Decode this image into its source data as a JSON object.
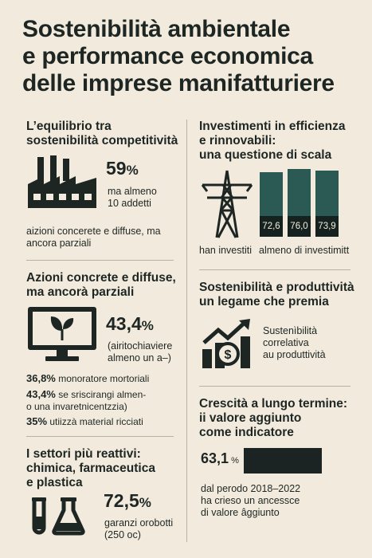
{
  "title": [
    "Sostenibilità ambientale",
    "e performance economica",
    "delle imprese manifatturiere"
  ],
  "colors": {
    "background": "#f2ebdd",
    "ink": "#1e2624",
    "bar": "#2b5a55",
    "bar_dark": "#162220"
  },
  "sec1": {
    "heading": [
      "L’equilibrio tra",
      "sostenibilità competitività"
    ],
    "icon": "factory-icon",
    "value": "59",
    "unit": "%",
    "note": [
      "ma almeno",
      "10 addetti"
    ],
    "caption": [
      "aizioni concerete e diffuse, ma",
      "ancora parziali"
    ]
  },
  "sec2": {
    "heading": [
      "Azioni concrete e diffuse,",
      "ma ancorà parziali"
    ],
    "icon": "monitor-leaf-icon",
    "value": "43,4",
    "unit": "%",
    "note": [
      "(airitochiaviere",
      "almeno un a–)"
    ],
    "stats": [
      {
        "value": "36,8%",
        "text": "monoratore mortoriali"
      },
      {
        "value": "43,4%",
        "text": "se sriscirangi almen-",
        "text2": "o una invaretnicentzzia)"
      },
      {
        "value": "35%",
        "text": "utiizzà material ricciati"
      }
    ]
  },
  "sec3": {
    "heading": [
      "I settori più reattivi:",
      "chimica, farmaceutica",
      "e plastica"
    ],
    "icon": "flask-icon",
    "value": "72,5",
    "unit": "%",
    "note": [
      "garanzi orobotti",
      "(250 oc)"
    ]
  },
  "sec4": {
    "heading": [
      "Investimenti in efficienza",
      "e rinnovabili:",
      "una questione di scala"
    ],
    "icon": "power-tower-icon",
    "chart_data": {
      "type": "bar",
      "values": [
        72.6,
        76.0,
        73.9
      ],
      "labels": [
        "72,6",
        "76,0",
        "73,9"
      ]
    },
    "caption_left": "han investiti",
    "caption_right": "almeno di investimitt"
  },
  "sec5": {
    "heading": [
      "Sostenibilità e produttività",
      "un legame che premia"
    ],
    "icon": "growth-chart-icon",
    "text": [
      "Sustenìbilità",
      "correlativa",
      "au produttività"
    ]
  },
  "sec6": {
    "heading": [
      "Crescità a lungo termine:",
      "ii valore aggiunto",
      "come indicatore"
    ],
    "value": "63,1",
    "unit": "%",
    "bar_fraction": 0.631,
    "text": [
      "dal perodo 2018–2022",
      "ha crieso un ancessce",
      "di valore âggiunto"
    ]
  }
}
